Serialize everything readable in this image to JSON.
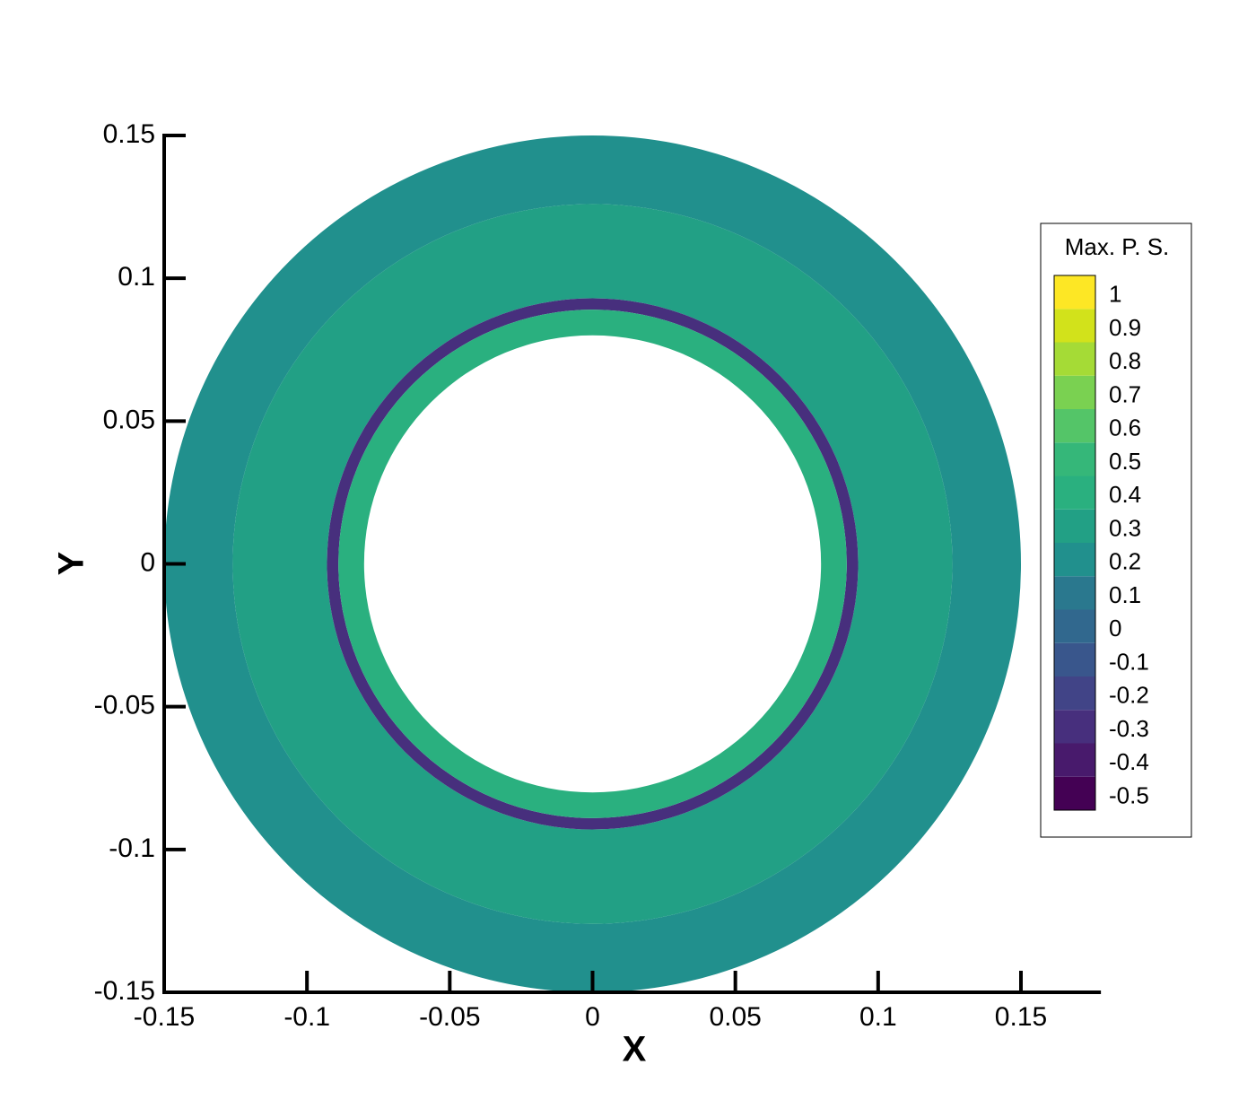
{
  "chart_data": {
    "type": "contour",
    "xlabel": "X",
    "ylabel": "Y",
    "xlim": [
      -0.15,
      0.178
    ],
    "ylim": [
      -0.15,
      0.15
    ],
    "xticks": [
      -0.15,
      -0.1,
      -0.05,
      0,
      0.05,
      0.1,
      0.15
    ],
    "yticks": [
      -0.15,
      -0.1,
      -0.05,
      0,
      0.05,
      0.1,
      0.15
    ],
    "legend": {
      "title": "Max. P. S.",
      "levels": [
        -0.5,
        -0.4,
        -0.3,
        -0.2,
        -0.1,
        0,
        0.1,
        0.2,
        0.3,
        0.4,
        0.5,
        0.6,
        0.7,
        0.8,
        0.9,
        1
      ],
      "colors": [
        "#440154",
        "#481a6c",
        "#472f7d",
        "#414487",
        "#39568c",
        "#31688e",
        "#2a788e",
        "#21908d",
        "#22a085",
        "#2ab07f",
        "#35b779",
        "#54c568",
        "#7ad151",
        "#a5db36",
        "#d2e21b",
        "#fde725"
      ]
    },
    "rings": [
      {
        "r": [
          0.126,
          0.15
        ],
        "level": 0.2
      },
      {
        "r": [
          0.093,
          0.126
        ],
        "level": 0.3
      },
      {
        "r": [
          0.089,
          0.093
        ],
        "level": -0.3
      },
      {
        "r": [
          0.08,
          0.089
        ],
        "level": 0.4
      }
    ]
  }
}
